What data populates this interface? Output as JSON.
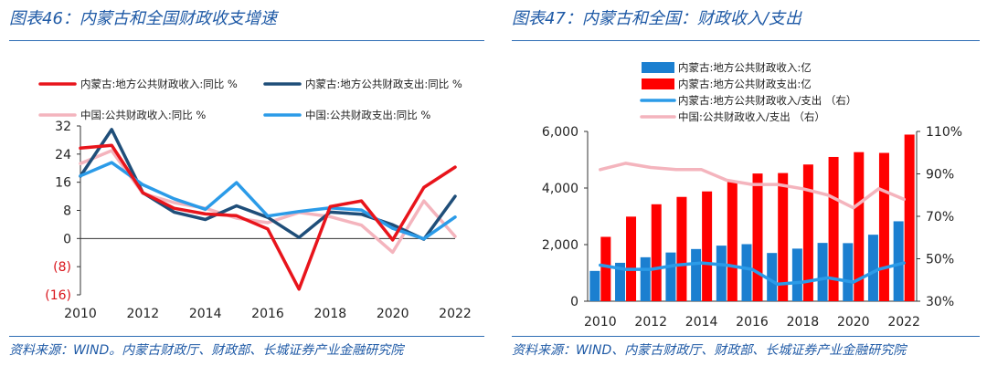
{
  "left": {
    "title": "图表46：内蒙古和全国财政收支增速",
    "source": "资料来源：WIND。内蒙古财政厅、财政部、长城证券产业金融研究院"
  },
  "right": {
    "title": "图表47：内蒙古和全国：财政收入/支出",
    "source": "资料来源：WIND、内蒙古财政厅、财政部、长城证券产业金融研究院"
  },
  "chart_data": [
    {
      "type": "line",
      "title": "内蒙古和全国财政收支增速",
      "x": [
        2010,
        2011,
        2012,
        2013,
        2014,
        2015,
        2016,
        2017,
        2018,
        2019,
        2020,
        2021,
        2022
      ],
      "ylim": [
        -16,
        32
      ],
      "yticks": [
        32,
        24,
        16,
        8,
        0,
        -8,
        -16
      ],
      "ytick_labels": [
        "32",
        "24",
        "16",
        "8",
        "0",
        "(8)",
        "(16)"
      ],
      "xtick_labels": [
        "2010",
        "2012",
        "2014",
        "2016",
        "2018",
        "2020",
        "2022"
      ],
      "series": [
        {
          "name": "中国:公共财政收入:同比 %",
          "color": "#f4b4bd",
          "values": [
            21.3,
            25.0,
            12.8,
            10.2,
            8.6,
            5.8,
            4.5,
            7.4,
            6.2,
            3.8,
            -3.9,
            10.7,
            0.6
          ]
        },
        {
          "name": "内蒙古:地方公共财政支出:同比 %",
          "color": "#1f4e79",
          "values": [
            17.7,
            31.0,
            13.0,
            7.5,
            5.4,
            9.3,
            6.0,
            0.3,
            7.5,
            6.9,
            3.9,
            -0.2,
            12.0
          ]
        },
        {
          "name": "中国:公共财政支出:同比 %",
          "color": "#2b9be8",
          "values": [
            17.8,
            21.6,
            15.3,
            11.3,
            8.3,
            15.9,
            6.4,
            7.7,
            8.7,
            8.1,
            2.9,
            -0.1,
            6.1
          ]
        },
        {
          "name": "内蒙古:地方公共财政收入:同比 %",
          "color": "#e8141b",
          "values": [
            25.7,
            26.5,
            13.0,
            8.6,
            7.0,
            6.5,
            2.7,
            -14.4,
            9.1,
            10.7,
            -0.4,
            14.5,
            20.3
          ]
        }
      ],
      "legend": [
        {
          "name": "内蒙古:地方公共财政收入:同比 %",
          "color": "#e8141b"
        },
        {
          "name": "内蒙古:地方公共财政支出:同比 %",
          "color": "#1f4e79"
        },
        {
          "name": "中国:公共财政收入:同比 %",
          "color": "#f4b4bd"
        },
        {
          "name": "中国:公共财政支出:同比 %",
          "color": "#2b9be8"
        }
      ]
    },
    {
      "type": "bar",
      "title": "内蒙古和全国：财政收入/支出",
      "x": [
        2010,
        2011,
        2012,
        2013,
        2014,
        2015,
        2016,
        2017,
        2018,
        2019,
        2020,
        2021,
        2022
      ],
      "ylim": [
        0,
        6000
      ],
      "yticks": [
        0,
        2000,
        4000,
        6000
      ],
      "ytick_labels": [
        "0",
        "2,000",
        "4,000",
        "6,000"
      ],
      "y2lim": [
        30,
        110
      ],
      "y2ticks": [
        30,
        50,
        70,
        90,
        110
      ],
      "y2tick_labels": [
        "30%",
        "50%",
        "70%",
        "90%",
        "110%"
      ],
      "xtick_labels": [
        "2010",
        "2012",
        "2014",
        "2016",
        "2018",
        "2020",
        "2022"
      ],
      "bar_series": [
        {
          "name": "内蒙古:地方公共财政收入:亿",
          "color": "#1b7fd0",
          "values": [
            1070,
            1357,
            1553,
            1721,
            1844,
            1964,
            2016,
            1704,
            1858,
            2060,
            2052,
            2350,
            2824
          ]
        },
        {
          "name": "内蒙古:地方公共财政支出:亿",
          "color": "#ff0000",
          "values": [
            2274,
            2989,
            3426,
            3686,
            3880,
            4253,
            4513,
            4529,
            4831,
            5098,
            5268,
            5241,
            5888
          ]
        }
      ],
      "line_series": [
        {
          "name": "内蒙古:地方公共财政收入/支出 （右）",
          "color": "#2b9be8",
          "axis": "right",
          "values": [
            47,
            45,
            45,
            47,
            48,
            47,
            45,
            38,
            39,
            41,
            39,
            45,
            48
          ]
        },
        {
          "name": "中国:公共财政收入/支出 （右）",
          "color": "#f4b4bd",
          "axis": "right",
          "values": [
            92,
            95,
            93,
            92,
            92,
            87,
            85,
            85,
            83,
            80,
            74,
            83,
            78
          ]
        }
      ],
      "legend": [
        {
          "name": "内蒙古:地方公共财政收入:亿",
          "color": "#1b7fd0",
          "kind": "bar"
        },
        {
          "name": "内蒙古:地方公共财政支出:亿",
          "color": "#ff0000",
          "kind": "bar"
        },
        {
          "name": "内蒙古:地方公共财政收入/支出 （右）",
          "color": "#2b9be8",
          "kind": "line"
        },
        {
          "name": "中国:公共财政收入/支出 （右）",
          "color": "#f4b4bd",
          "kind": "line"
        }
      ]
    }
  ]
}
